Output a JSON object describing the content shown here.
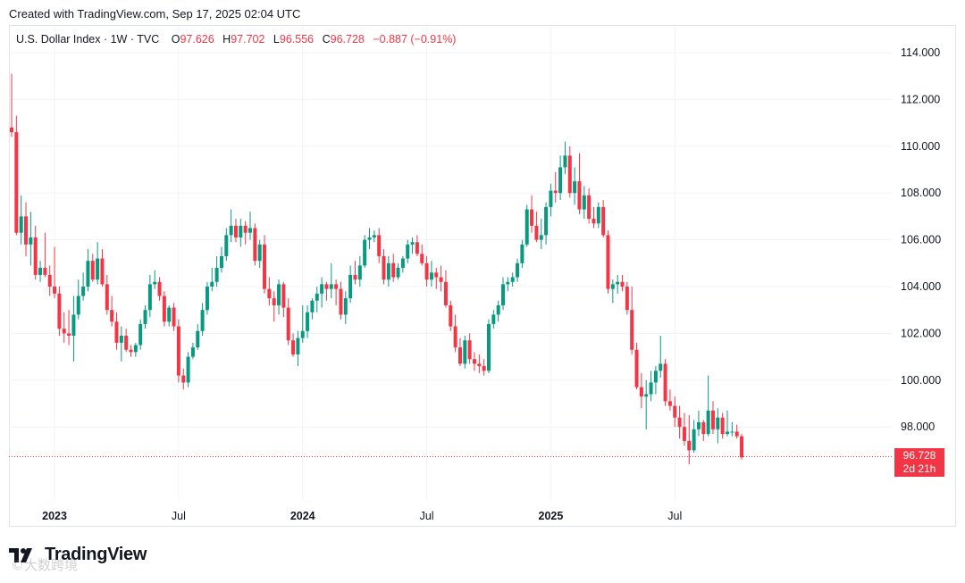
{
  "header": {
    "created": "Created with TradingView.com, Sep 17, 2025 02:04 UTC"
  },
  "legend": {
    "symbol": "U.S. Dollar Index · 1W · TVC",
    "open_label": "O",
    "open": "97.626",
    "high_label": "H",
    "high": "97.702",
    "low_label": "L",
    "low": "96.556",
    "close_label": "C",
    "close": "96.728",
    "change": "−0.887 (−0.91%)"
  },
  "price_tag": {
    "value": "96.728",
    "countdown": "2d 21h"
  },
  "brand": {
    "name": "TradingView"
  },
  "watermark": "©大数跨境",
  "colors": {
    "up": "#089981",
    "down": "#f23645",
    "grid": "#f0f3fa",
    "text": "#131722"
  },
  "chart_data": {
    "type": "candlestick",
    "title": "U.S. Dollar Index · 1W · TVC",
    "ylim": [
      94.5,
      115.5
    ],
    "y_ticks": [
      98,
      100,
      102,
      104,
      106,
      108,
      110,
      112,
      114
    ],
    "y_tick_labels": [
      "98.000",
      "100.000",
      "102.000",
      "104.000",
      "106.000",
      "108.000",
      "110.000",
      "112.000",
      "114.000"
    ],
    "x_ticks": [
      {
        "index": 9,
        "label": "2023"
      },
      {
        "index": 35,
        "label": "Jul"
      },
      {
        "index": 61,
        "label": "2024"
      },
      {
        "index": 87,
        "label": "Jul"
      },
      {
        "index": 113,
        "label": "2025"
      },
      {
        "index": 139,
        "label": "Jul"
      }
    ],
    "last_price": 96.728,
    "candles": [
      [
        110.8,
        113.1,
        110.4,
        110.6
      ],
      [
        110.6,
        111.3,
        106.2,
        106.3
      ],
      [
        106.3,
        107.9,
        105.8,
        107.0
      ],
      [
        107.0,
        107.6,
        105.3,
        105.8
      ],
      [
        105.8,
        107.2,
        104.9,
        106.1
      ],
      [
        106.1,
        106.6,
        104.3,
        104.5
      ],
      [
        104.5,
        105.1,
        104.2,
        104.8
      ],
      [
        104.8,
        106.3,
        104.4,
        104.5
      ],
      [
        104.5,
        104.9,
        103.6,
        104.0
      ],
      [
        104.0,
        105.7,
        103.5,
        103.7
      ],
      [
        103.7,
        104.0,
        101.9,
        102.2
      ],
      [
        102.2,
        102.9,
        101.6,
        102.0
      ],
      [
        102.0,
        103.0,
        101.5,
        101.9
      ],
      [
        101.9,
        103.6,
        100.8,
        102.8
      ],
      [
        102.8,
        104.3,
        102.6,
        103.6
      ],
      [
        103.6,
        104.6,
        103.4,
        104.0
      ],
      [
        104.0,
        105.6,
        103.8,
        105.1
      ],
      [
        105.1,
        105.4,
        104.2,
        104.3
      ],
      [
        104.3,
        105.9,
        104.1,
        105.2
      ],
      [
        105.2,
        105.6,
        104.0,
        104.1
      ],
      [
        104.1,
        104.5,
        102.8,
        103.0
      ],
      [
        103.0,
        103.6,
        102.3,
        102.5
      ],
      [
        102.5,
        102.9,
        101.3,
        101.6
      ],
      [
        101.6,
        102.3,
        100.8,
        101.9
      ],
      [
        101.9,
        102.2,
        101.2,
        101.3
      ],
      [
        101.3,
        101.5,
        101.0,
        101.2
      ],
      [
        101.2,
        101.6,
        101.0,
        101.5
      ],
      [
        101.5,
        102.6,
        101.3,
        102.4
      ],
      [
        102.4,
        103.2,
        102.2,
        103.0
      ],
      [
        103.0,
        104.5,
        102.7,
        104.1
      ],
      [
        104.1,
        104.7,
        103.9,
        104.2
      ],
      [
        104.2,
        104.4,
        103.4,
        103.6
      ],
      [
        103.6,
        103.8,
        102.3,
        102.5
      ],
      [
        102.5,
        103.2,
        102.3,
        103.1
      ],
      [
        103.1,
        103.3,
        102.1,
        102.3
      ],
      [
        102.3,
        102.6,
        99.9,
        100.2
      ],
      [
        100.2,
        100.5,
        99.6,
        99.9
      ],
      [
        99.9,
        101.2,
        99.7,
        101.0
      ],
      [
        101.0,
        101.6,
        100.9,
        101.4
      ],
      [
        101.4,
        102.4,
        101.3,
        102.1
      ],
      [
        102.1,
        103.3,
        101.9,
        103.0
      ],
      [
        103.0,
        104.2,
        102.8,
        104.0
      ],
      [
        104.0,
        104.8,
        103.8,
        104.2
      ],
      [
        104.2,
        105.3,
        104.0,
        104.8
      ],
      [
        104.8,
        105.7,
        104.6,
        105.3
      ],
      [
        105.3,
        106.5,
        105.1,
        106.2
      ],
      [
        106.2,
        107.3,
        105.9,
        106.6
      ],
      [
        106.6,
        106.9,
        105.9,
        106.1
      ],
      [
        106.1,
        106.9,
        105.7,
        106.6
      ],
      [
        106.6,
        106.8,
        105.8,
        106.3
      ],
      [
        106.3,
        107.2,
        106.0,
        106.5
      ],
      [
        106.5,
        106.7,
        104.9,
        105.1
      ],
      [
        105.1,
        106.0,
        104.8,
        105.8
      ],
      [
        105.8,
        106.2,
        103.7,
        103.9
      ],
      [
        103.9,
        104.4,
        103.2,
        103.5
      ],
      [
        103.5,
        103.8,
        102.5,
        103.2
      ],
      [
        103.2,
        104.3,
        102.8,
        104.1
      ],
      [
        104.1,
        104.2,
        102.7,
        103.1
      ],
      [
        103.1,
        103.5,
        101.5,
        101.7
      ],
      [
        101.7,
        102.0,
        101.0,
        101.1
      ],
      [
        101.1,
        102.1,
        100.6,
        101.8
      ],
      [
        101.8,
        103.2,
        101.6,
        102.1
      ],
      [
        102.1,
        103.2,
        101.8,
        102.9
      ],
      [
        102.9,
        103.5,
        102.6,
        103.4
      ],
      [
        103.4,
        104.0,
        102.9,
        103.7
      ],
      [
        103.7,
        104.4,
        103.1,
        104.1
      ],
      [
        104.1,
        104.2,
        103.4,
        103.9
      ],
      [
        103.9,
        105.0,
        103.5,
        104.1
      ],
      [
        104.1,
        104.3,
        103.2,
        103.9
      ],
      [
        103.9,
        104.2,
        102.6,
        102.8
      ],
      [
        102.8,
        103.8,
        102.4,
        103.5
      ],
      [
        103.5,
        104.9,
        103.3,
        104.5
      ],
      [
        104.5,
        105.1,
        104.1,
        104.3
      ],
      [
        104.3,
        105.3,
        104.0,
        104.9
      ],
      [
        104.9,
        106.2,
        104.8,
        106.0
      ],
      [
        106.0,
        106.5,
        105.6,
        106.1
      ],
      [
        106.1,
        106.4,
        105.9,
        106.2
      ],
      [
        106.2,
        106.5,
        105.0,
        105.3
      ],
      [
        105.3,
        105.6,
        104.1,
        104.3
      ],
      [
        104.3,
        105.3,
        104.0,
        105.0
      ],
      [
        105.0,
        105.4,
        104.2,
        104.4
      ],
      [
        104.4,
        105.0,
        104.3,
        104.8
      ],
      [
        104.8,
        105.3,
        104.6,
        105.2
      ],
      [
        105.2,
        106.0,
        105.0,
        105.8
      ],
      [
        105.8,
        106.1,
        105.4,
        105.9
      ],
      [
        105.9,
        106.2,
        105.3,
        105.4
      ],
      [
        105.4,
        105.8,
        104.9,
        105.0
      ],
      [
        105.0,
        105.3,
        104.0,
        104.3
      ],
      [
        104.3,
        105.1,
        104.0,
        104.6
      ],
      [
        104.6,
        104.8,
        103.9,
        104.4
      ],
      [
        104.4,
        104.9,
        103.8,
        104.2
      ],
      [
        104.2,
        104.7,
        103.1,
        103.2
      ],
      [
        103.2,
        103.4,
        102.1,
        102.3
      ],
      [
        102.3,
        102.8,
        101.2,
        101.4
      ],
      [
        101.4,
        101.8,
        100.6,
        100.7
      ],
      [
        100.7,
        101.9,
        100.5,
        101.7
      ],
      [
        101.7,
        102.0,
        100.7,
        100.9
      ],
      [
        100.9,
        101.2,
        100.4,
        100.7
      ],
      [
        100.7,
        101.1,
        100.3,
        100.6
      ],
      [
        100.6,
        100.9,
        100.2,
        100.4
      ],
      [
        100.4,
        102.6,
        100.3,
        102.4
      ],
      [
        102.4,
        103.0,
        102.2,
        102.8
      ],
      [
        102.8,
        103.4,
        102.5,
        103.2
      ],
      [
        103.2,
        104.4,
        103.0,
        104.1
      ],
      [
        104.1,
        104.4,
        103.8,
        104.2
      ],
      [
        104.2,
        104.6,
        104.0,
        104.4
      ],
      [
        104.4,
        105.2,
        104.2,
        105.0
      ],
      [
        105.0,
        106.0,
        104.8,
        105.8
      ],
      [
        105.8,
        107.5,
        105.7,
        107.3
      ],
      [
        107.3,
        107.9,
        106.3,
        106.6
      ],
      [
        106.6,
        107.2,
        105.9,
        106.0
      ],
      [
        106.0,
        106.9,
        105.6,
        106.2
      ],
      [
        106.2,
        107.6,
        105.8,
        107.4
      ],
      [
        107.4,
        108.4,
        107.0,
        108.1
      ],
      [
        108.1,
        108.9,
        107.6,
        108.0
      ],
      [
        108.0,
        109.6,
        107.7,
        109.1
      ],
      [
        109.1,
        110.2,
        108.8,
        109.6
      ],
      [
        109.6,
        110.0,
        107.8,
        108.0
      ],
      [
        108.0,
        109.1,
        107.5,
        108.5
      ],
      [
        108.5,
        109.7,
        107.1,
        107.3
      ],
      [
        107.3,
        108.3,
        106.9,
        107.9
      ],
      [
        107.9,
        108.2,
        106.7,
        106.9
      ],
      [
        106.9,
        107.4,
        106.5,
        106.7
      ],
      [
        106.7,
        107.6,
        106.5,
        107.4
      ],
      [
        107.4,
        107.7,
        106.1,
        106.2
      ],
      [
        106.2,
        106.4,
        103.7,
        103.9
      ],
      [
        103.9,
        104.3,
        103.3,
        104.1
      ],
      [
        104.1,
        104.5,
        103.7,
        104.2
      ],
      [
        104.2,
        104.5,
        103.8,
        104.0
      ],
      [
        104.0,
        104.2,
        102.8,
        103.0
      ],
      [
        103.0,
        104.0,
        101.1,
        101.3
      ],
      [
        101.3,
        101.6,
        99.6,
        99.7
      ],
      [
        99.7,
        100.3,
        98.8,
        99.3
      ],
      [
        99.3,
        100.0,
        97.9,
        99.4
      ],
      [
        99.4,
        100.4,
        99.1,
        99.9
      ],
      [
        99.9,
        100.6,
        99.4,
        100.4
      ],
      [
        100.4,
        101.9,
        100.1,
        100.7
      ],
      [
        100.7,
        100.9,
        98.9,
        99.1
      ],
      [
        99.1,
        99.6,
        98.7,
        98.9
      ],
      [
        98.9,
        99.3,
        98.0,
        98.4
      ],
      [
        98.4,
        98.9,
        97.5,
        98.0
      ],
      [
        98.0,
        98.6,
        97.2,
        97.4
      ],
      [
        97.4,
        98.5,
        96.4,
        97.0
      ],
      [
        97.0,
        98.3,
        96.9,
        97.9
      ],
      [
        97.9,
        98.7,
        97.6,
        98.2
      ],
      [
        98.2,
        98.3,
        97.4,
        97.7
      ],
      [
        97.7,
        100.2,
        97.6,
        98.7
      ],
      [
        98.7,
        99.1,
        97.7,
        97.9
      ],
      [
        97.9,
        98.8,
        97.3,
        98.4
      ],
      [
        98.4,
        98.6,
        97.5,
        97.7
      ],
      [
        97.7,
        98.7,
        97.6,
        97.8
      ],
      [
        97.8,
        98.2,
        97.6,
        97.8
      ],
      [
        97.8,
        98.1,
        97.5,
        97.6
      ],
      [
        97.6,
        97.7,
        96.6,
        96.7
      ]
    ]
  }
}
